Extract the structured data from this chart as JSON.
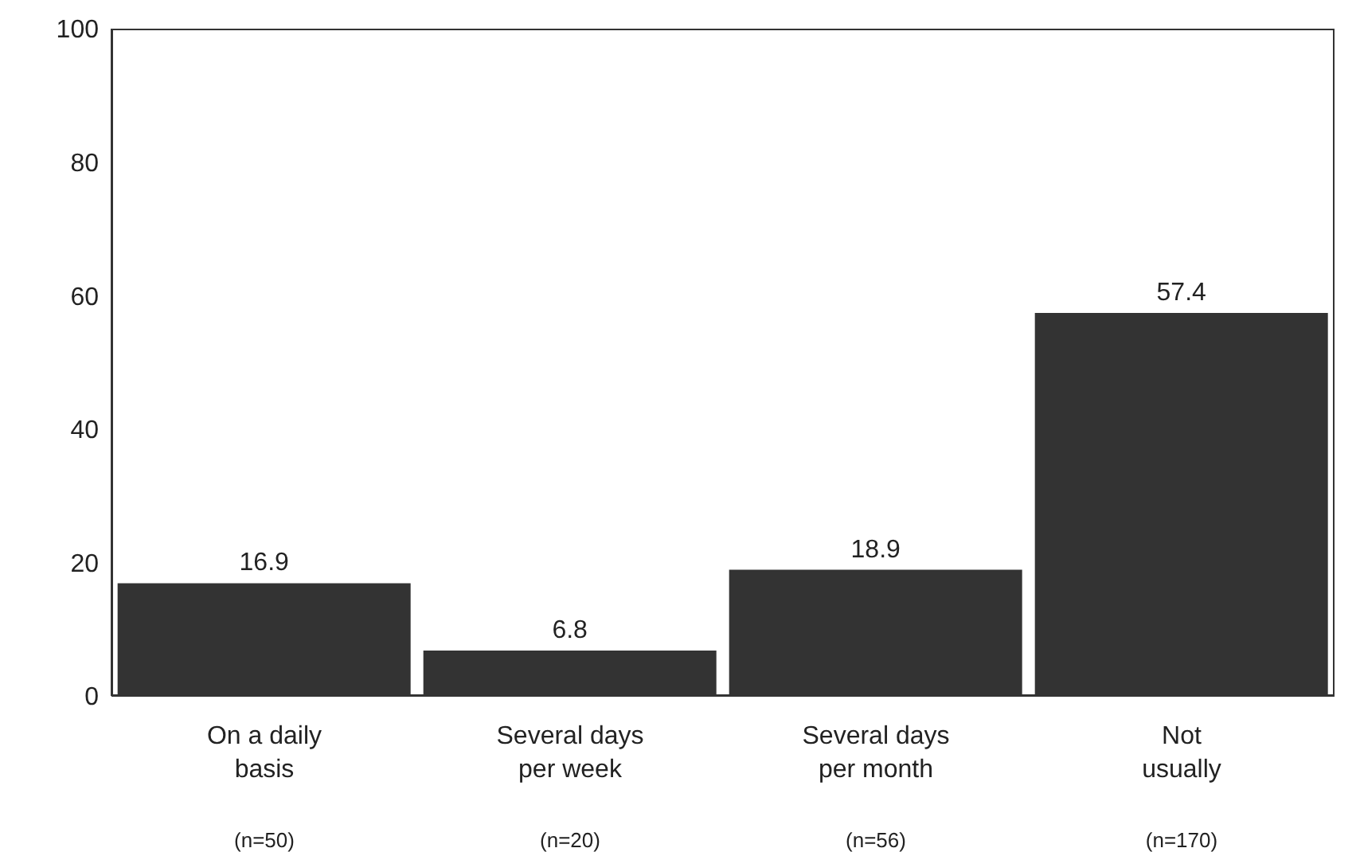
{
  "chart_data": {
    "type": "bar",
    "categories": [
      "On a daily\nbasis\n(n=50)",
      "Several days\nper week\n(n=20)",
      "Several days\nper month\n(n=56)",
      "Not\nusually\n(n=170)"
    ],
    "values": [
      16.9,
      6.8,
      18.9,
      57.4
    ],
    "color": "#333333",
    "ylim": [
      0,
      100
    ],
    "yticks": [
      0,
      20,
      40,
      60,
      80,
      100
    ],
    "data_labels": true
  }
}
